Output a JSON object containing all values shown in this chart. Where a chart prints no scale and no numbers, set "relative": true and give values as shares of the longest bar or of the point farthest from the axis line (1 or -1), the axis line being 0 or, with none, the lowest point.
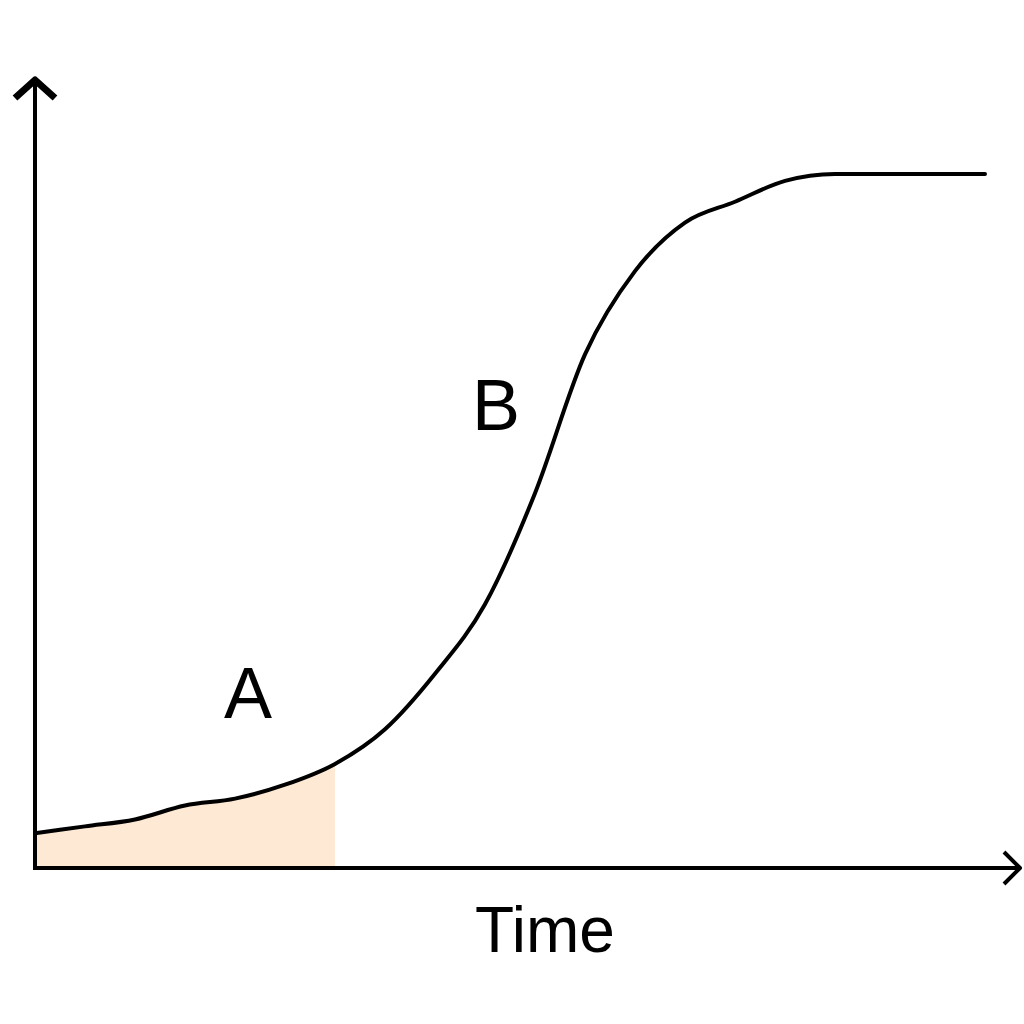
{
  "chart_data": {
    "type": "line",
    "relative": true,
    "xlabel": "Time",
    "categories": [
      null,
      null,
      null,
      null,
      null,
      null,
      null,
      null,
      null,
      null,
      null,
      null,
      null,
      null,
      null,
      null,
      null,
      null,
      null,
      null
    ],
    "series": [
      {
        "type": "area",
        "color": "#fde9d4",
        "values": [
          0.05,
          0.06,
          0.07,
          0.09,
          0.1,
          0.12,
          0.15,
          null,
          null,
          null,
          null,
          null,
          null,
          null,
          null,
          null,
          null,
          null,
          null,
          null
        ]
      },
      {
        "color": "#000000",
        "values": [
          0.05,
          0.06,
          0.07,
          0.09,
          0.1,
          0.12,
          0.15,
          0.2,
          0.28,
          0.38,
          0.54,
          0.74,
          0.86,
          0.93,
          0.96,
          0.99,
          1,
          1,
          1,
          1
        ]
      }
    ],
    "annotations": [
      "A",
      "B"
    ],
    "grid": false
  }
}
